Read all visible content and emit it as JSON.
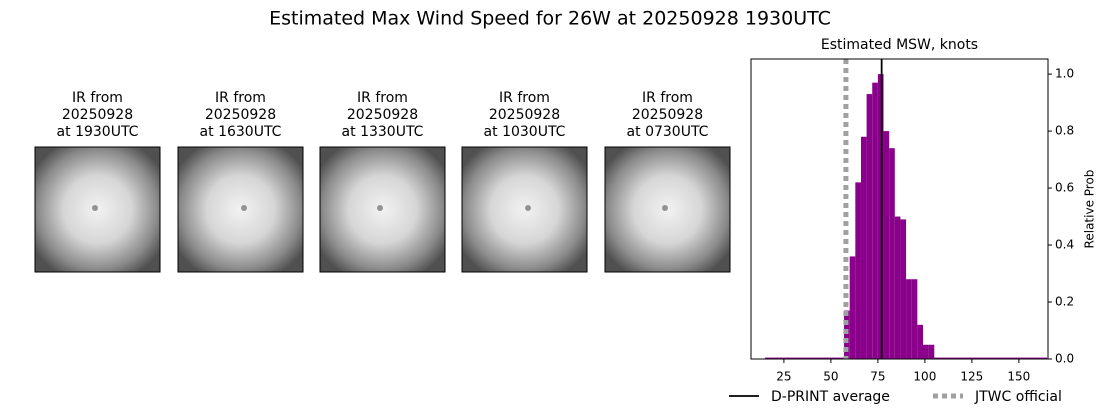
{
  "title": "Estimated Max Wind Speed for 26W at 20250928 1930UTC",
  "panels": [
    {
      "lines": [
        "IR from",
        "20250928",
        "at 1930UTC"
      ]
    },
    {
      "lines": [
        "IR from",
        "20250928",
        "at 1630UTC"
      ]
    },
    {
      "lines": [
        "IR from",
        "20250928",
        "at 1330UTC"
      ]
    },
    {
      "lines": [
        "IR from",
        "20250928",
        "at 1030UTC"
      ]
    },
    {
      "lines": [
        "IR from",
        "20250928",
        "at 0730UTC"
      ]
    }
  ],
  "chart_data": {
    "type": "histogram",
    "title": "Estimated MSW, knots",
    "ylabel": "Relative Prob",
    "yaxis_side": "right",
    "color": "#8b008b",
    "bins": [
      15,
      57,
      60,
      63,
      66,
      69,
      72,
      75,
      78,
      81,
      84,
      87,
      90,
      93,
      96,
      99,
      102,
      105,
      165
    ],
    "values": [
      0.005,
      0.17,
      0.36,
      0.62,
      0.78,
      0.93,
      0.97,
      1.0,
      0.8,
      0.74,
      0.5,
      0.49,
      0.28,
      0.28,
      0.12,
      0.05,
      0.05,
      0.005
    ],
    "xlim": [
      7.5,
      165.5
    ],
    "ylim": [
      0,
      1.053
    ],
    "xticks": [
      25,
      50,
      75,
      100,
      125,
      150
    ],
    "yticks": [
      {
        "value": 0,
        "label": "0.0"
      },
      0.2,
      0.4,
      0.6,
      0.8,
      {
        "value": 1,
        "label": "1.0"
      }
    ],
    "lines": [
      {
        "name": "D-PRINT average",
        "value": 77,
        "color": "#000000",
        "style": "solid"
      },
      {
        "name": "JTWC official",
        "value": 58,
        "color": "#a0a0a0",
        "style": "dotted"
      }
    ]
  }
}
